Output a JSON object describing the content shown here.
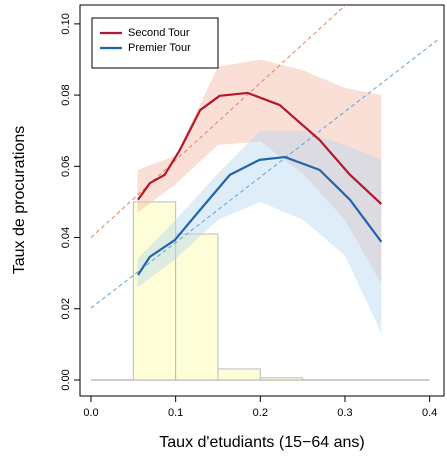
{
  "chart_data": {
    "type": "line",
    "x_label": "Taux d'etudiants (15−64 ans)",
    "y_label": "Taux de procurations",
    "xlim": [
      -0.013,
      0.417
    ],
    "ylim": [
      -0.0045,
      0.1053
    ],
    "xticks": [
      {
        "value": 0,
        "label": "0.0"
      },
      0.1,
      0.2,
      0.3,
      0.4
    ],
    "yticks": [
      {
        "value": 0,
        "label": "0.00"
      },
      {
        "value": 0.02,
        "label": "0.02"
      },
      {
        "value": 0.04,
        "label": "0.04"
      },
      {
        "value": 0.06,
        "label": "0.06"
      },
      {
        "value": 0.08,
        "label": "0.08"
      },
      {
        "value": 0.1,
        "label": "0.10"
      }
    ],
    "legend_position": "top-left",
    "histogram": {
      "bins": [
        0,
        0.05,
        0.1,
        0.15,
        0.2,
        0.25,
        0.3,
        0.35,
        0.4
      ],
      "counts": [
        0,
        0.05,
        0.041,
        0.0031,
        0.0006,
        0,
        0,
        0
      ],
      "color": "#fdfdd8",
      "edgecolor": "#bbbbbb"
    },
    "series": [
      {
        "name": "Second Tour",
        "color": "#b2182b",
        "band_color": "#f4b9a6",
        "trend_color": "#e8804f",
        "x": [
          0.0555,
          0.0696,
          0.087,
          0.105,
          0.129,
          0.152,
          0.185,
          0.223,
          0.27,
          0.306,
          0.343
        ],
        "values": [
          0.0506,
          0.0553,
          0.0576,
          0.0646,
          0.0758,
          0.0798,
          0.0806,
          0.0772,
          0.0674,
          0.0576,
          0.0494
        ],
        "band": {
          "x": [
            0.055,
            0.1,
            0.15,
            0.2,
            0.25,
            0.3,
            0.343
          ],
          "lower": [
            0.047,
            0.055,
            0.066,
            0.067,
            0.058,
            0.045,
            0.027
          ],
          "upper": [
            0.059,
            0.063,
            0.088,
            0.09,
            0.087,
            0.082,
            0.08
          ]
        },
        "trend": {
          "x": [
            0,
            0.41
          ],
          "values": [
            0.04,
            0.129
          ]
        }
      },
      {
        "name": "Premier Tour",
        "color": "#2166ac",
        "band_color": "#b6d7ee",
        "trend_color": "#5ea3d8",
        "x": [
          0.0555,
          0.0696,
          0.099,
          0.129,
          0.164,
          0.199,
          0.229,
          0.27,
          0.306,
          0.343
        ],
        "values": [
          0.0295,
          0.0346,
          0.0393,
          0.0478,
          0.0576,
          0.0618,
          0.0626,
          0.059,
          0.0506,
          0.0388
        ],
        "band": {
          "x": [
            0.055,
            0.1,
            0.15,
            0.2,
            0.25,
            0.3,
            0.343
          ],
          "lower": [
            0.026,
            0.034,
            0.045,
            0.05,
            0.045,
            0.035,
            0.013
          ],
          "upper": [
            0.034,
            0.045,
            0.058,
            0.07,
            0.07,
            0.066,
            0.062
          ]
        },
        "trend": {
          "x": [
            0,
            0.41
          ],
          "values": [
            0.0202,
            0.0956
          ]
        }
      }
    ]
  }
}
